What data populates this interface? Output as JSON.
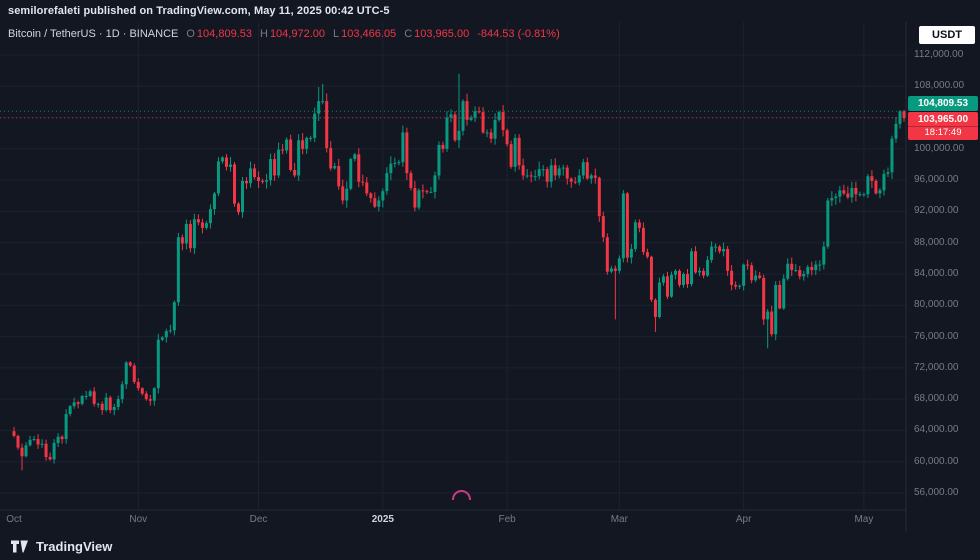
{
  "header": {
    "publish_note": "semilorefaleti published on TradingView.com, May 11, 2025 00:42 UTC-5",
    "symbol_title": "Bitcoin / TetherUS · 1D · BINANCE",
    "ohlc": {
      "o_label": "O",
      "o": "104,809.53",
      "h_label": "H",
      "h": "104,972.00",
      "l_label": "L",
      "l": "103,466.05",
      "c_label": "C",
      "c": "103,965.00",
      "change": "-844.53 (-0.81%)"
    },
    "currency_button": "USDT"
  },
  "footer": {
    "brand": "TradingView"
  },
  "chart_data": {
    "type": "candlestick",
    "title": "Bitcoin / TetherUS 1D BINANCE",
    "unit": "thousand USDT per value in closes_k",
    "y_min": 56000,
    "y_max": 112000,
    "first_open_k": 63.9,
    "closes_k": [
      63.3,
      61.8,
      60.7,
      62.1,
      62.8,
      62.9,
      62.2,
      62.3,
      60.6,
      60.3,
      62.4,
      63.2,
      62.9,
      66.1,
      67.1,
      67.6,
      67.4,
      68.4,
      68.4,
      69.0,
      67.4,
      67.4,
      66.6,
      68.2,
      66.6,
      67.0,
      68.0,
      69.9,
      72.7,
      72.3,
      70.2,
      69.4,
      68.7,
      68.0,
      67.8,
      69.4,
      75.6,
      75.9,
      76.7,
      76.8,
      80.4,
      88.7,
      87.9,
      90.4,
      87.3,
      91.0,
      90.6,
      89.9,
      90.5,
      92.3,
      94.3,
      98.4,
      98.9,
      97.7,
      98.0,
      93.0,
      91.9,
      95.9,
      95.6,
      97.5,
      96.4,
      95.9,
      95.8,
      96.0,
      98.7,
      96.6,
      99.9,
      99.8,
      101.2,
      97.3,
      96.6,
      101.1,
      100.0,
      101.4,
      101.4,
      104.5,
      106.1,
      106.1,
      100.1,
      97.5,
      97.8,
      95.2,
      93.4,
      94.9,
      98.7,
      99.3,
      95.8,
      95.7,
      94.3,
      93.7,
      92.6,
      93.4,
      94.6,
      96.9,
      98.1,
      98.2,
      98.3,
      102.1,
      96.9,
      95.0,
      92.5,
      94.7,
      94.6,
      94.5,
      94.5,
      96.6,
      100.5,
      100.0,
      104.0,
      104.4,
      101.1,
      102.3,
      106.1,
      103.7,
      104.0,
      104.8,
      104.7,
      102.1,
      102.1,
      101.3,
      103.7,
      104.7,
      102.4,
      100.6,
      97.7,
      101.4,
      97.9,
      96.6,
      96.6,
      96.5,
      96.5,
      97.4,
      97.4,
      95.8,
      97.9,
      96.6,
      97.5,
      97.6,
      96.2,
      95.8,
      95.7,
      96.6,
      98.3,
      96.2,
      96.6,
      96.3,
      91.4,
      88.7,
      84.3,
      84.7,
      84.4,
      86.0,
      94.3,
      86.1,
      87.2,
      90.6,
      89.9,
      86.8,
      86.2,
      80.7,
      78.5,
      82.9,
      83.7,
      81.1,
      83.9,
      84.4,
      82.6,
      84.0,
      82.7,
      86.9,
      84.2,
      84.4,
      83.8,
      85.8,
      87.5,
      87.5,
      86.9,
      87.2,
      84.4,
      82.6,
      82.4,
      82.5,
      85.2,
      85.1,
      83.2,
      83.8,
      83.5,
      78.2,
      79.2,
      76.3,
      82.6,
      79.6,
      83.4,
      85.3,
      84.5,
      84.5,
      83.7,
      84.0,
      84.9,
      84.5,
      85.2,
      85.2,
      87.5,
      93.4,
      93.7,
      93.9,
      94.7,
      94.3,
      93.8,
      95.0,
      94.2,
      94.2,
      94.2,
      96.5,
      95.9,
      94.3,
      94.7,
      96.8,
      97.0,
      101.3,
      103.2,
      104.80953,
      103.965
    ],
    "wick_overrides": {
      "2": {
        "low": 58.9
      },
      "76": {
        "high": 107.9
      },
      "77": {
        "high": 108.3
      },
      "111": {
        "high": 109.6
      },
      "150": {
        "low": 78.2
      },
      "160": {
        "low": 76.6
      },
      "188": {
        "low": 74.5
      },
      "221": {
        "high": 104.95
      },
      "222": {
        "high": 104.972,
        "low": 103.466
      }
    },
    "y_gridlines": [
      112000,
      108000,
      104000,
      100000,
      96000,
      92000,
      88000,
      84000,
      80000,
      76000,
      72000,
      68000,
      64000,
      60000,
      56000
    ],
    "y_labels": [
      {
        "v": 112000,
        "label": "112,000.00"
      },
      {
        "v": 108000,
        "label": "108,000.00"
      },
      {
        "v": 100000,
        "label": "100,000.00"
      },
      {
        "v": 96000,
        "label": "96,000.00"
      },
      {
        "v": 92000,
        "label": "92,000.00"
      },
      {
        "v": 88000,
        "label": "88,000.00"
      },
      {
        "v": 84000,
        "label": "84,000.00"
      },
      {
        "v": 80000,
        "label": "80,000.00"
      },
      {
        "v": 76000,
        "label": "76,000.00"
      },
      {
        "v": 72000,
        "label": "72,000.00"
      },
      {
        "v": 68000,
        "label": "68,000.00"
      },
      {
        "v": 64000,
        "label": "64,000.00"
      },
      {
        "v": 60000,
        "label": "60,000.00"
      },
      {
        "v": 56000,
        "label": "56,000.00"
      }
    ],
    "x_ticks": [
      {
        "label": "Oct",
        "i": 0
      },
      {
        "label": "Nov",
        "i": 31
      },
      {
        "label": "Dec",
        "i": 61
      },
      {
        "label": "2025",
        "i": 92,
        "strong": true
      },
      {
        "label": "Feb",
        "i": 123
      },
      {
        "label": "Mar",
        "i": 151
      },
      {
        "label": "Apr",
        "i": 182
      },
      {
        "label": "May",
        "i": 212
      }
    ],
    "price_lines": [
      {
        "name": "open-price-label",
        "value": 104809.53,
        "label": "104,809.53",
        "color": "#089981"
      },
      {
        "name": "last-price-label",
        "value": 103965.0,
        "label": "103,965.00",
        "countdown": "18:17:49",
        "color": "#f23645"
      }
    ],
    "colors": {
      "up": "#089981",
      "down": "#f23645",
      "grid": "#1e2231",
      "divider": "#262b3a",
      "background": "#131722"
    },
    "legend_position": "none",
    "grid": true
  }
}
